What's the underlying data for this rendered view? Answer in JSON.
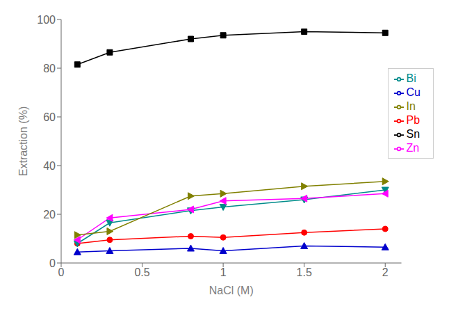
{
  "chart_data": {
    "type": "line",
    "x": [
      0.1,
      0.3,
      0.8,
      1.0,
      1.5,
      2.0
    ],
    "series": [
      {
        "name": "Sn",
        "color": "#000000",
        "marker": "square",
        "values": [
          81.5,
          86.5,
          92.0,
          93.5,
          95.0,
          94.5
        ]
      },
      {
        "name": "Pb",
        "color": "#ff0000",
        "marker": "circle",
        "values": [
          8.0,
          9.5,
          11.0,
          10.5,
          12.5,
          14.0
        ]
      },
      {
        "name": "Cu",
        "color": "#0000cc",
        "marker": "triangle-up",
        "values": [
          4.5,
          5.0,
          6.0,
          5.0,
          7.0,
          6.5
        ]
      },
      {
        "name": "Bi",
        "color": "#008b8b",
        "marker": "triangle-down",
        "values": [
          8.0,
          16.5,
          21.5,
          23.0,
          26.0,
          30.0
        ]
      },
      {
        "name": "Zn",
        "color": "#ff00ff",
        "marker": "triangle-left",
        "values": [
          9.5,
          18.5,
          22.0,
          25.5,
          26.5,
          28.5
        ]
      },
      {
        "name": "In",
        "color": "#808000",
        "marker": "triangle-right",
        "values": [
          11.5,
          13.0,
          27.5,
          28.5,
          31.5,
          33.5
        ]
      }
    ],
    "xlabel": "NaCl (M)",
    "ylabel": "Extraction (%)",
    "xlim": [
      0,
      2.1
    ],
    "xticks": [
      0,
      0.5,
      1,
      1.5,
      2
    ],
    "ylim": [
      0,
      100
    ],
    "yticks": [
      0,
      20,
      40,
      60,
      80,
      100
    ],
    "grid": false,
    "legend": "right"
  }
}
